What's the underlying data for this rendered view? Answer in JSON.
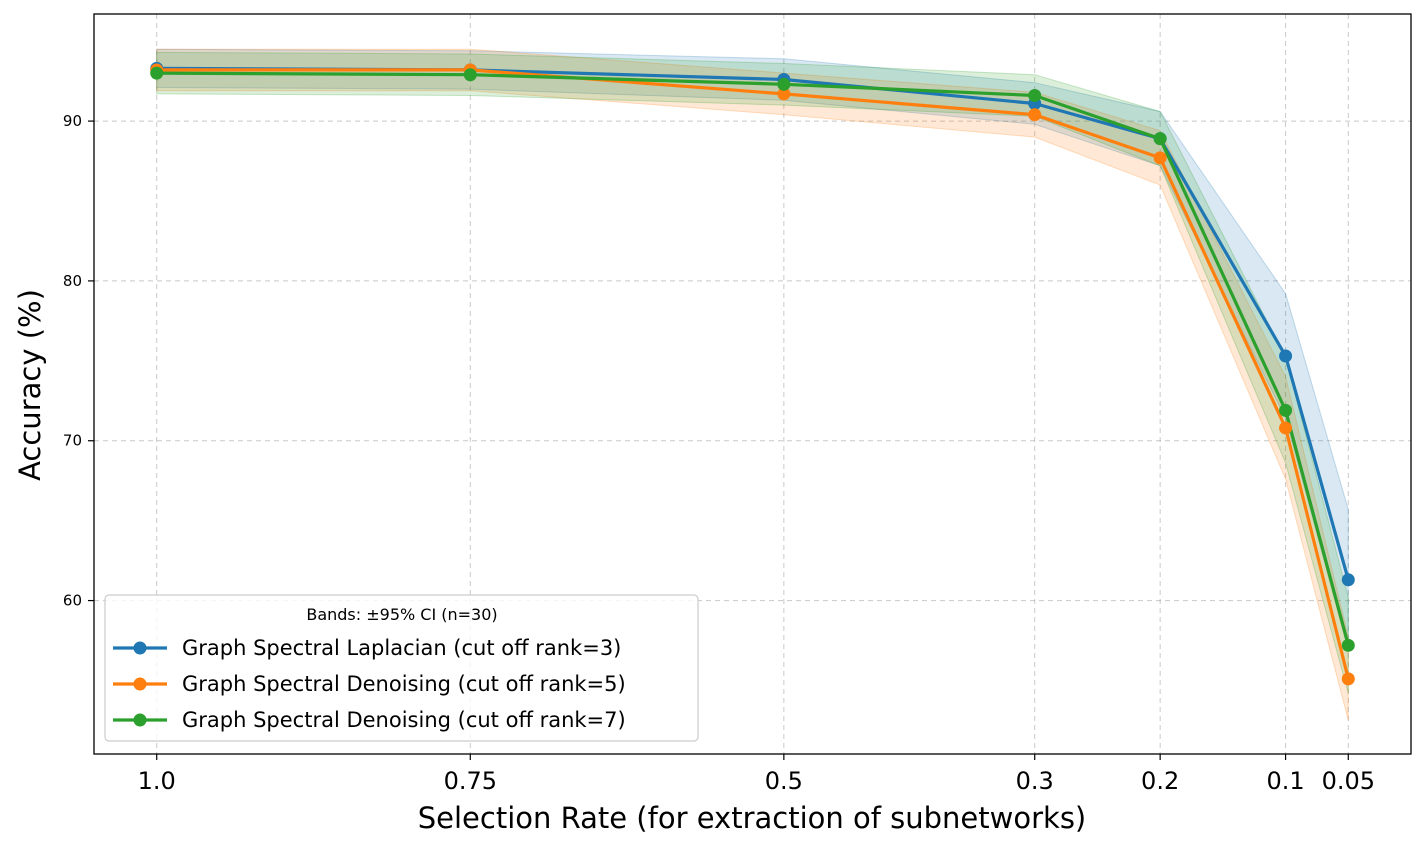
{
  "chart_data": {
    "type": "line",
    "title": "",
    "xlabel": "Selection Rate (for extraction of subnetworks)",
    "ylabel": "Accuracy (%)",
    "categories": [
      "1.0",
      "0.75",
      "0.5",
      "0.3",
      "0.2",
      "0.1",
      "0.05"
    ],
    "x": [
      1.0,
      0.75,
      0.5,
      0.3,
      0.2,
      0.1,
      0.05
    ],
    "x_reversed": true,
    "xlim": [
      1.05,
      0.0
    ],
    "ylim": [
      50.4,
      96.7
    ],
    "yticks": [
      60,
      70,
      80,
      90
    ],
    "grid": true,
    "legend": {
      "placement": "lower-left",
      "title": "Bands: ±95% CI (n=30)"
    },
    "series": [
      {
        "name": "Graph Spectral Laplacian (cut off rank=3)",
        "color": "#1f77b4",
        "values": [
          93.3,
          93.2,
          92.6,
          91.1,
          88.9,
          75.3,
          61.3
        ],
        "ci_lower": [
          92.1,
          92.0,
          91.3,
          89.8,
          87.2,
          71.4,
          56.9
        ],
        "ci_upper": [
          94.5,
          94.4,
          93.9,
          92.4,
          90.6,
          79.2,
          65.7
        ]
      },
      {
        "name": "Graph Spectral Denoising (cut off rank=5)",
        "color": "#ff7f0e",
        "values": [
          93.2,
          93.2,
          91.7,
          90.4,
          87.7,
          70.8,
          55.1
        ],
        "ci_lower": [
          91.9,
          91.9,
          90.4,
          89.0,
          86.0,
          67.6,
          52.5
        ],
        "ci_upper": [
          94.5,
          94.5,
          93.0,
          91.8,
          89.4,
          74.0,
          57.7
        ]
      },
      {
        "name": "Graph Spectral Denoising (cut off rank=7)",
        "color": "#2ca02c",
        "values": [
          93.0,
          92.9,
          92.3,
          91.6,
          88.9,
          71.9,
          57.2
        ],
        "ci_lower": [
          91.7,
          91.6,
          91.0,
          90.3,
          87.2,
          68.6,
          54.2
        ],
        "ci_upper": [
          94.3,
          94.2,
          93.6,
          92.9,
          90.6,
          75.2,
          60.2
        ]
      }
    ]
  }
}
